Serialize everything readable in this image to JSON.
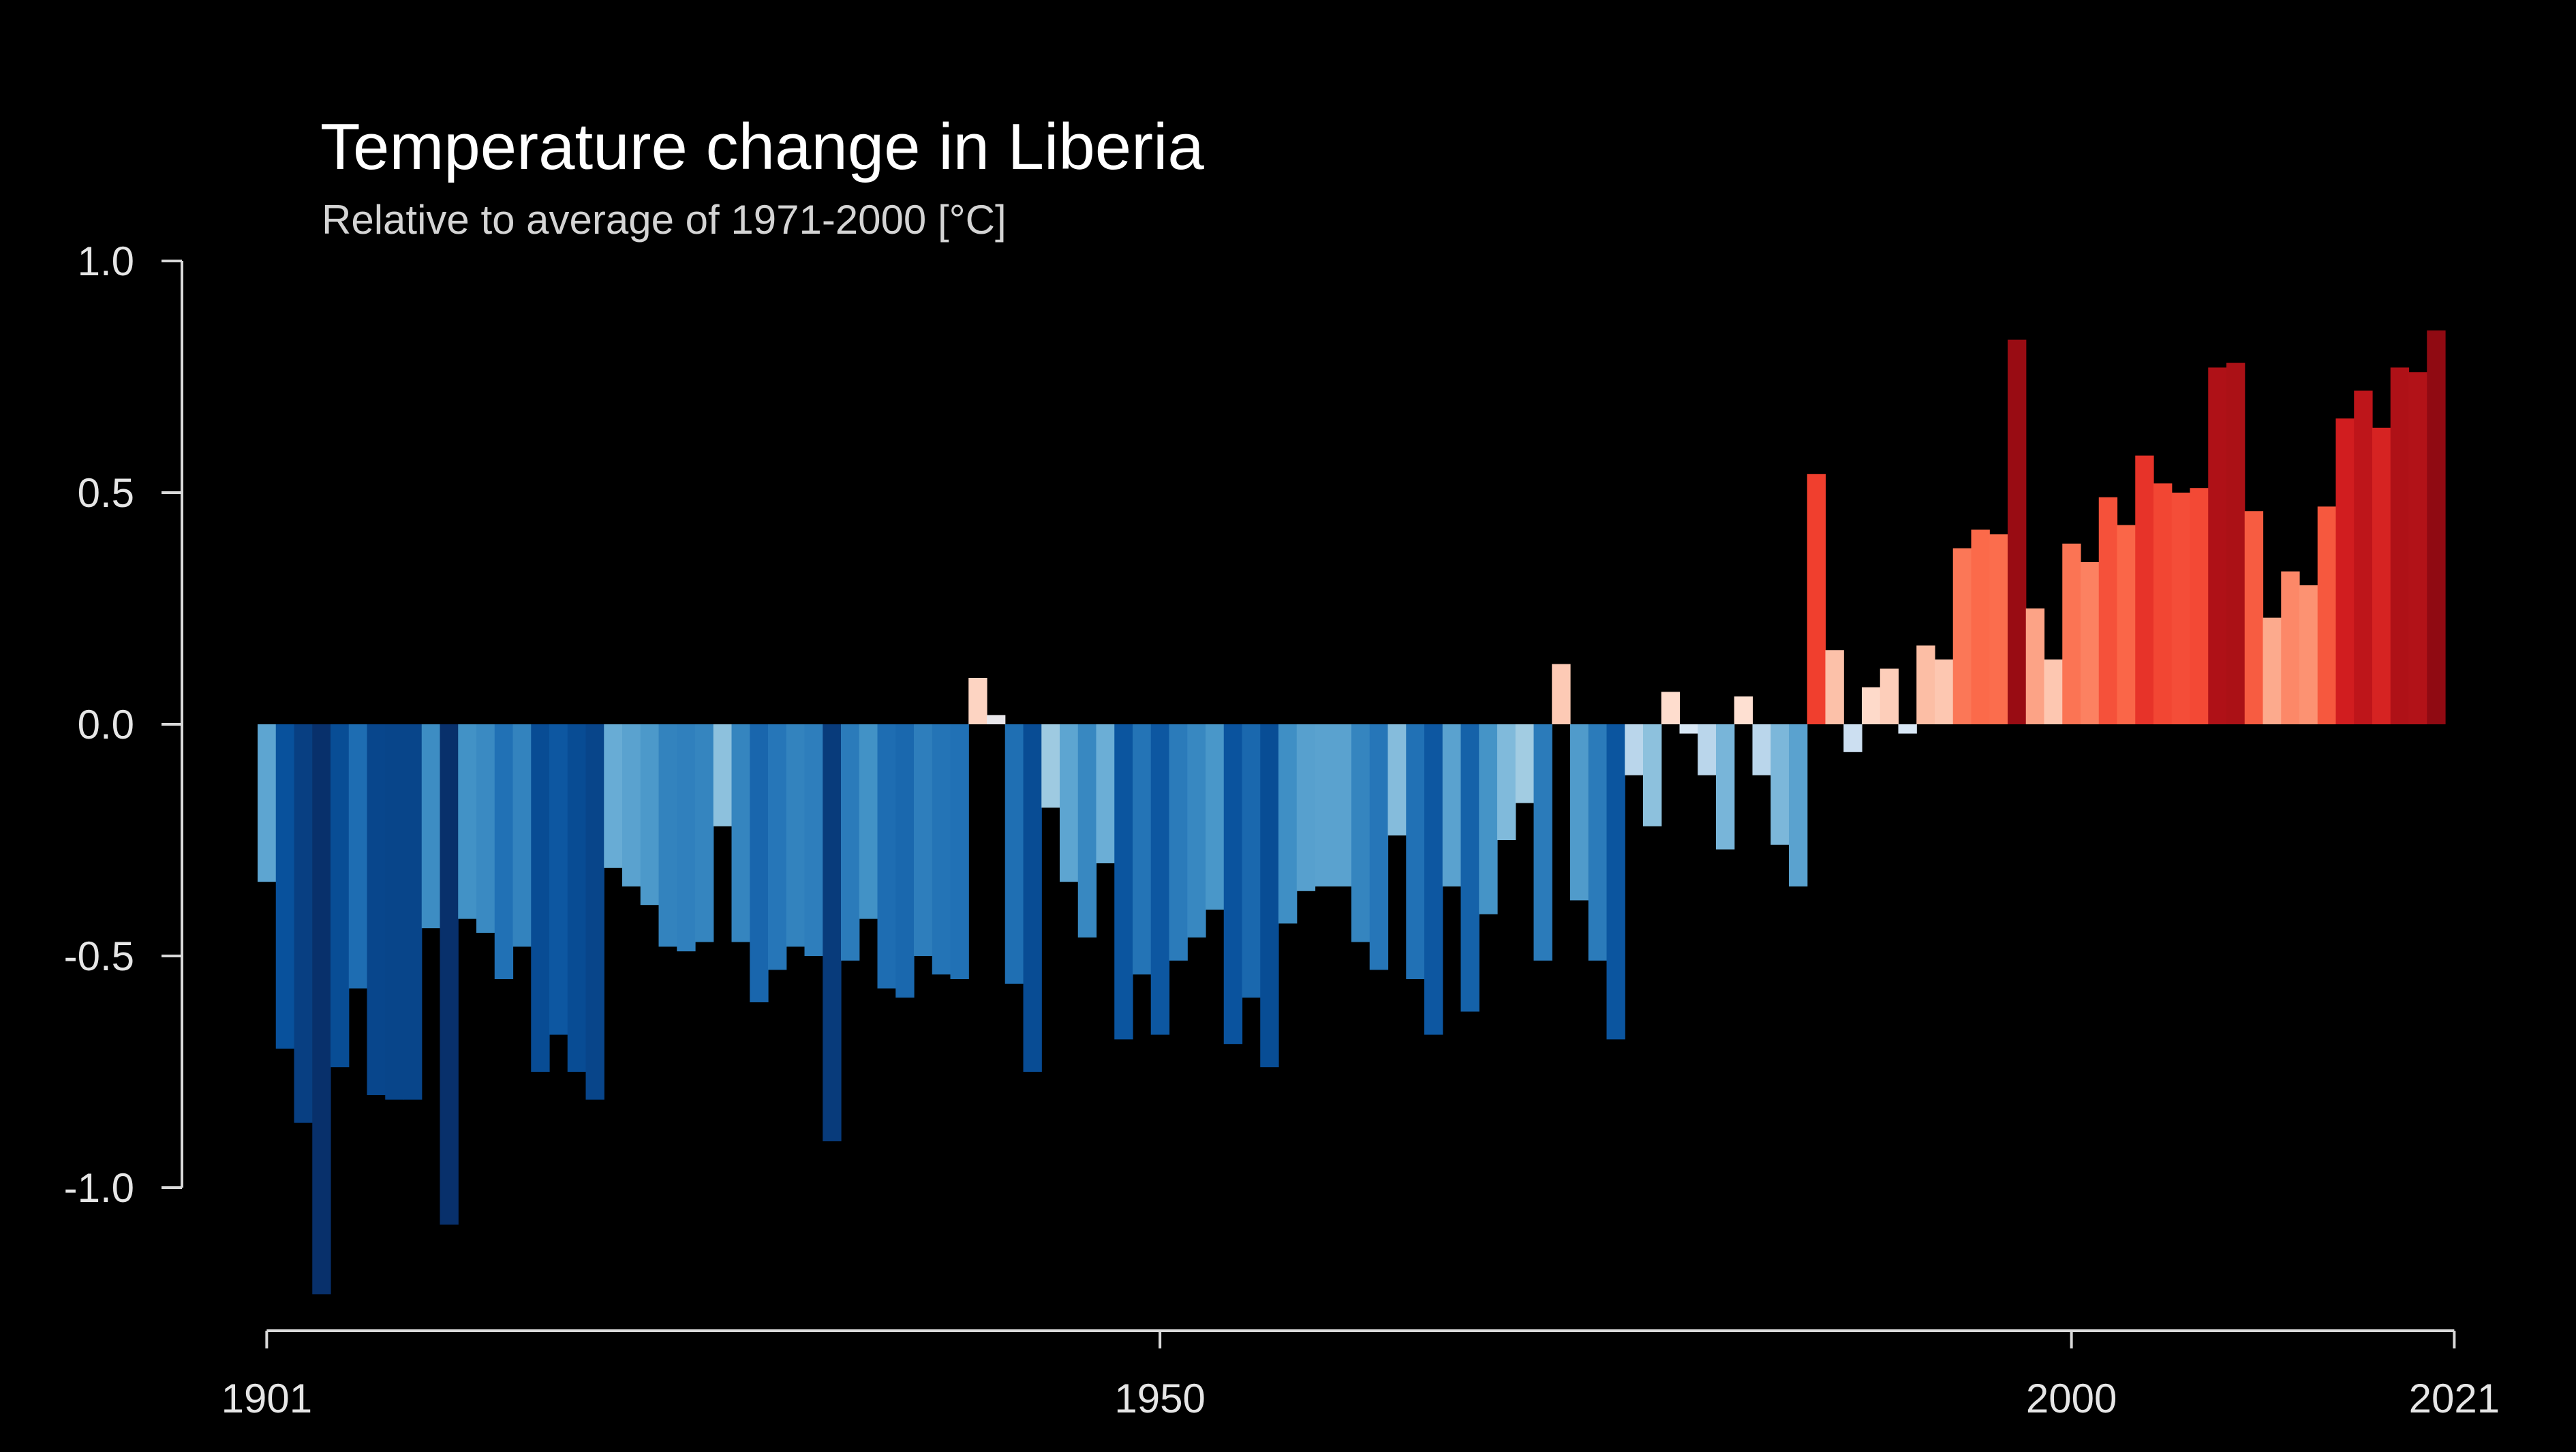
{
  "chart_data": {
    "type": "bar",
    "title": "Temperature change in Liberia",
    "subtitle": "Relative to average of 1971-2000  [°C]",
    "xlabel": "",
    "ylabel": "",
    "x_start": 1901,
    "x_end": 2021,
    "xlim": [
      1901,
      2021
    ],
    "ylim": [
      -1.25,
      1.0
    ],
    "grid": false,
    "legend": "none",
    "x_ticks": [
      1901,
      1950,
      2000,
      2021
    ],
    "x_tick_labels": [
      "1901",
      "1950",
      "2000",
      "2021"
    ],
    "y_ticks": [
      1.0,
      0.5,
      0.0,
      -0.5,
      -1.0
    ],
    "y_tick_labels": [
      "1.0",
      "0.5",
      "0.0",
      "-0.5",
      "-1.0"
    ],
    "values": [
      -0.34,
      -0.7,
      -0.86,
      -1.23,
      -0.74,
      -0.57,
      -0.8,
      -0.81,
      -0.81,
      -0.44,
      -1.08,
      -0.42,
      -0.45,
      -0.55,
      -0.48,
      -0.75,
      -0.67,
      -0.75,
      -0.81,
      -0.31,
      -0.35,
      -0.39,
      -0.48,
      -0.49,
      -0.47,
      -0.22,
      -0.47,
      -0.6,
      -0.53,
      -0.48,
      -0.5,
      -0.9,
      -0.51,
      -0.42,
      -0.57,
      -0.59,
      -0.5,
      -0.54,
      -0.55,
      0.1,
      0.02,
      -0.56,
      -0.75,
      -0.18,
      -0.34,
      -0.46,
      -0.3,
      -0.68,
      -0.54,
      -0.67,
      -0.51,
      -0.46,
      -0.4,
      -0.69,
      -0.59,
      -0.74,
      -0.43,
      -0.36,
      -0.35,
      -0.35,
      -0.47,
      -0.53,
      -0.24,
      -0.55,
      -0.67,
      -0.35,
      -0.62,
      -0.41,
      -0.25,
      -0.17,
      -0.51,
      0.13,
      -0.38,
      -0.51,
      -0.68,
      -0.11,
      -0.22,
      0.07,
      -0.02,
      -0.11,
      -0.27,
      0.06,
      -0.11,
      -0.26,
      -0.35,
      0.54,
      0.16,
      -0.06,
      0.08,
      0.12,
      -0.02,
      0.17,
      0.14,
      0.38,
      0.42,
      0.41,
      0.83,
      0.25,
      0.14,
      0.39,
      0.35,
      0.49,
      0.43,
      0.58,
      0.52,
      0.5,
      0.51,
      0.77,
      0.78,
      0.46,
      0.23,
      0.33,
      0.3,
      0.47,
      0.66,
      0.72,
      0.64,
      0.77,
      0.76,
      0.85
    ]
  }
}
